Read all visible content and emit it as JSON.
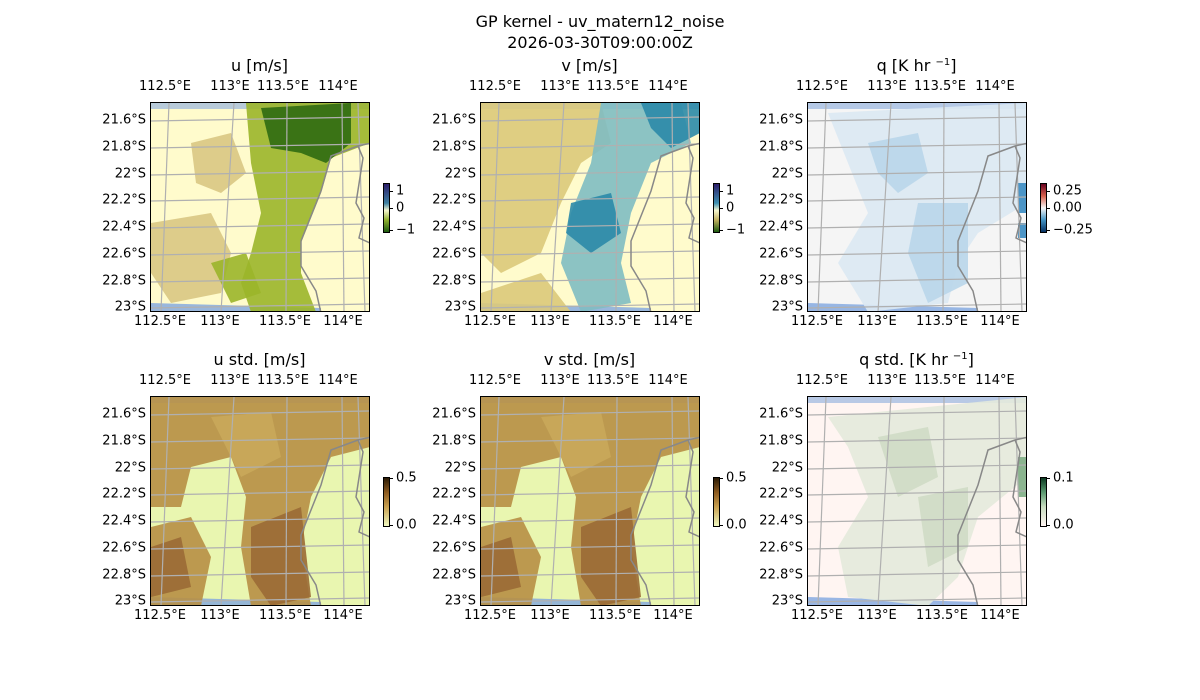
{
  "figure": {
    "title": "GP kernel - uv_matern12_noise",
    "subtitle": "2026-03-30T09:00:00Z"
  },
  "axes": {
    "xticks_top": [
      "112.5°E",
      "113°E",
      "113.5°E",
      "114°E"
    ],
    "xticks_bottom": [
      "112.5°E",
      "113°E",
      "113.5°E",
      "114°E"
    ],
    "yticks": [
      "21.6°S",
      "21.8°S",
      "22°S",
      "22.2°S",
      "22.4°S",
      "22.6°S",
      "22.8°S",
      "23°S"
    ]
  },
  "panels": [
    {
      "title": "u [m/s]",
      "sup": "",
      "tail": "",
      "style": "u",
      "colorbar_ticks": [
        "1",
        "0",
        "−1"
      ],
      "colors": {
        "bg": "#fffbcc",
        "low": "#d9c783",
        "mid": "#9bb52a",
        "high": "#2f6a12"
      }
    },
    {
      "title": "v [m/s]",
      "sup": "",
      "tail": "",
      "style": "v",
      "colorbar_ticks": [
        "1",
        "0",
        "−1"
      ],
      "colors": {
        "bg": "#fffbcc",
        "low": "#dcc97a",
        "mid": "#7fbcc2",
        "high": "#2b8aa8"
      }
    },
    {
      "title": "q [K hr ",
      "sup": "−1",
      "tail": "]",
      "style": "q",
      "colorbar_ticks": [
        "0.25",
        "0.00",
        "−0.25"
      ],
      "colors": {
        "bg": "#f5f5f5",
        "low": "#dbe9f3",
        "mid": "#b9d6ea",
        "high": "#3b8cc2"
      }
    },
    {
      "title": "u std. [m/s]",
      "sup": "",
      "tail": "",
      "style": "s",
      "colorbar_ticks": [
        "0.5",
        "0.0"
      ],
      "colors": {
        "bg": "#e9f6b0",
        "low": "#c9a95a",
        "mid": "#b78f45",
        "high": "#9a6a35"
      }
    },
    {
      "title": "v std. [m/s]",
      "sup": "",
      "tail": "",
      "style": "s",
      "colorbar_ticks": [
        "0.5",
        "0.0"
      ],
      "colors": {
        "bg": "#e9f6b0",
        "low": "#c9a95a",
        "mid": "#b78f45",
        "high": "#9a6a35"
      }
    },
    {
      "title": "q std. [K hr ",
      "sup": "−1",
      "tail": "]",
      "style": "qs",
      "colorbar_ticks": [
        "0.1",
        "0.0"
      ],
      "colors": {
        "bg": "#fff5f2",
        "low": "#e4eadb",
        "mid": "#cfdcc5",
        "high": "#7fae85"
      }
    }
  ]
}
